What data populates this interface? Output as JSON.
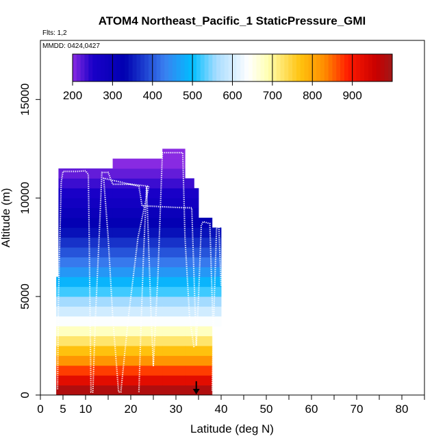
{
  "chart_data": {
    "type": "heatmap",
    "title": "ATOM4 Northeast_Pacific_1 StaticPressure_GMI",
    "subtitle_flights": "Flts: 1,2",
    "subtitle_dates": "MMDD: 0424,0427",
    "xlabel": "Latitude (deg N)",
    "ylabel": "Altitude (m)",
    "xlim": [
      0,
      85
    ],
    "ylim": [
      0,
      18000
    ],
    "x_ticks": [
      0,
      10,
      20,
      30,
      40,
      50,
      60,
      70,
      80
    ],
    "x_tick_labels": [
      "0",
      "10",
      "20",
      "30",
      "40",
      "50",
      "60",
      "70",
      "80"
    ],
    "x_extra_tick": 5,
    "x_extra_tick_label": "5",
    "y_ticks": [
      0,
      5000,
      10000,
      15000
    ],
    "y_tick_labels": [
      "0",
      "5000",
      "10000",
      "15000"
    ],
    "colorbar": {
      "min": 200,
      "max": 1000,
      "ticks": [
        200,
        300,
        400,
        500,
        600,
        700,
        800,
        900
      ],
      "tick_labels": [
        "200",
        "300",
        "400",
        "500",
        "600",
        "700",
        "800",
        "900"
      ],
      "stops": [
        {
          "v": 200,
          "c": "#8a2be2"
        },
        {
          "v": 250,
          "c": "#1a00c8"
        },
        {
          "v": 330,
          "c": "#0000b0"
        },
        {
          "v": 430,
          "c": "#3a7ff0"
        },
        {
          "v": 500,
          "c": "#00bfff"
        },
        {
          "v": 560,
          "c": "#a8dcff"
        },
        {
          "v": 640,
          "c": "#ffffff"
        },
        {
          "v": 690,
          "c": "#ffffb0"
        },
        {
          "v": 770,
          "c": "#ffc20e"
        },
        {
          "v": 830,
          "c": "#ff8c00"
        },
        {
          "v": 890,
          "c": "#ff1a00"
        },
        {
          "v": 960,
          "c": "#c80000"
        },
        {
          "v": 1000,
          "c": "#a01818"
        }
      ]
    },
    "altitude_bin_m": 500,
    "column_groups": [
      {
        "lat_start": 4,
        "lat_end": 16,
        "top_m": 11500
      },
      {
        "lat_start": 16,
        "lat_end": 27,
        "top_m": 12000
      },
      {
        "lat_start": 27,
        "lat_end": 32,
        "top_m": 12500
      },
      {
        "lat_start": 32,
        "lat_end": 34,
        "top_m": 11000
      },
      {
        "lat_start": 34,
        "lat_end": 35,
        "top_m": 10500
      },
      {
        "lat_start": 35,
        "lat_end": 38,
        "top_m": 9000
      },
      {
        "lat_start": 38,
        "lat_end": 40,
        "top_m": 8500
      }
    ],
    "left_edge_blocks": [
      {
        "lat_start": 3.5,
        "lat_end": 4,
        "bottom_m": 0,
        "top_m": 6000
      },
      {
        "lat_start": 4,
        "lat_end": 4.5,
        "bottom_m": 6000,
        "top_m": 8500
      },
      {
        "lat_start": 4.5,
        "lat_end": 5,
        "bottom_m": 8500,
        "top_m": 10500
      }
    ],
    "right_edge_blocks": [
      {
        "lat_start": 38,
        "lat_end": 40,
        "bottom_m": 0,
        "top_m": 3500,
        "max_lat": 38
      },
      {
        "lat_start": 38,
        "lat_end": 40,
        "bottom_m": 3500,
        "top_m": 6000,
        "max_lat": 40
      }
    ],
    "flight_track": [
      [
        3.8,
        300
      ],
      [
        4,
        5000
      ],
      [
        4.6,
        10800
      ],
      [
        5.0,
        11350
      ],
      [
        8,
        11350
      ],
      [
        10,
        11380
      ],
      [
        10.6,
        11200
      ],
      [
        10.8,
        8000
      ],
      [
        11.0,
        4000
      ],
      [
        11.2,
        150
      ],
      [
        11.6,
        150
      ],
      [
        12.2,
        4000
      ],
      [
        13.0,
        8000
      ],
      [
        13.6,
        11300
      ],
      [
        15.0,
        11300
      ],
      [
        16,
        10700
      ],
      [
        20,
        10700
      ],
      [
        22,
        10650
      ],
      [
        24,
        10600
      ],
      [
        21.6,
        8000
      ],
      [
        19.5,
        4000
      ],
      [
        17.8,
        150
      ],
      [
        17.3,
        150
      ],
      [
        16,
        4000
      ],
      [
        15,
        8000
      ],
      [
        14.0,
        11000
      ],
      [
        21.8,
        10600
      ],
      [
        22.5,
        9600
      ],
      [
        25,
        9580
      ],
      [
        30,
        9520
      ],
      [
        33.5,
        9500
      ],
      [
        34,
        6000
      ],
      [
        34.5,
        2500
      ],
      [
        35,
        5000
      ],
      [
        35.6,
        8600
      ],
      [
        36,
        8800
      ],
      [
        37.5,
        8700
      ],
      [
        38,
        5000
      ],
      [
        38.5,
        1000
      ],
      [
        38.0,
        200
      ],
      [
        38.5,
        5000
      ],
      [
        39,
        8500
      ],
      [
        39.5,
        8500
      ],
      [
        40,
        5500
      ]
    ],
    "flight_track_2": [
      [
        21.8,
        150
      ],
      [
        22.2,
        3000
      ],
      [
        22.8,
        7000
      ],
      [
        23.5,
        10600
      ],
      [
        24.5,
        4000
      ],
      [
        25,
        1500
      ],
      [
        26,
        6000
      ],
      [
        27,
        12300
      ],
      [
        31.5,
        12300
      ],
      [
        32,
        8000
      ],
      [
        33,
        4000
      ],
      [
        34,
        2400
      ]
    ],
    "arrow_marker": {
      "lat": 34.5,
      "from_m": 700,
      "to_m": 0
    }
  }
}
